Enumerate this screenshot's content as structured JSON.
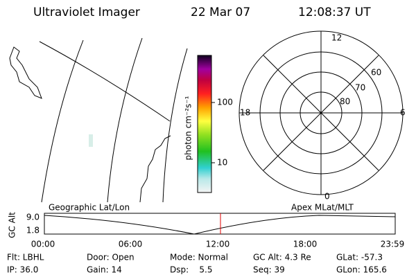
{
  "header": {
    "instrument": "Ultraviolet Imager",
    "date": "22 Mar 07",
    "time": "12:08:37 UT"
  },
  "colorbar": {
    "label": "photon cm⁻²s⁻¹",
    "ticks": [
      "100",
      "10"
    ]
  },
  "polar": {
    "top": "12",
    "right": "6",
    "left": "18",
    "bottom": "0",
    "rings": [
      "60",
      "70",
      "80"
    ]
  },
  "altitude_panel": {
    "left_label": "Geographic Lat/Lon",
    "right_label": "Apex MLat/MLT",
    "y_label": "GC Alt",
    "y_ticks": [
      "9.0",
      "1.8"
    ],
    "x_ticks": [
      "00:00",
      "06:00",
      "12:00",
      "18:00",
      "23:59"
    ]
  },
  "status": {
    "rows": [
      [
        "Flt: LBHL",
        "Door: Open",
        "Mode: Normal",
        "GC Alt: 4.3 Re",
        "GLat: -57.3"
      ],
      [
        "IP: 36.0",
        "Gain: 14",
        "Dsp:    5.5",
        "Seq: 39",
        "GLon: 165.6"
      ]
    ]
  }
}
